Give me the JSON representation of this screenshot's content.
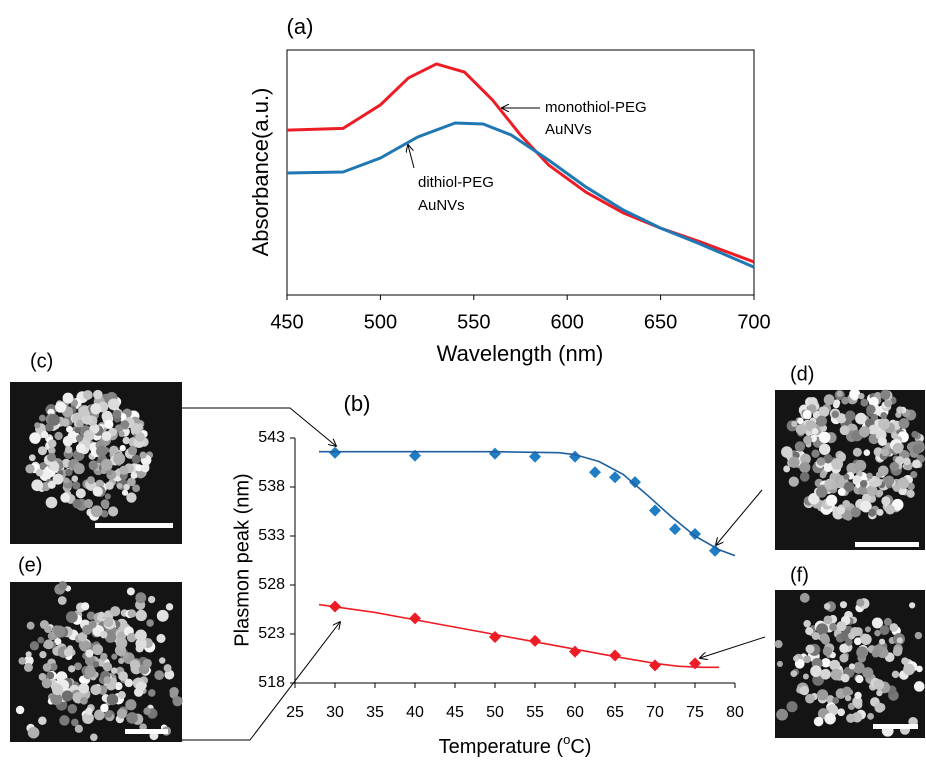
{
  "chart_data": [
    {
      "type": "line",
      "title": "(a)",
      "x_label": "Wavelength (nm)",
      "y_label": "Absorbance(a.u.)",
      "xlim": [
        450,
        700
      ],
      "xticks": [
        450,
        500,
        550,
        600,
        650,
        700
      ],
      "ylim": [
        0,
        1
      ],
      "series": [
        {
          "color": "#ee1c25",
          "x": [
            450,
            480,
            500,
            515,
            530,
            545,
            560,
            575,
            590,
            610,
            630,
            650,
            670,
            700
          ],
          "values": [
            0.673,
            0.68,
            0.776,
            0.886,
            0.943,
            0.91,
            0.796,
            0.653,
            0.531,
            0.42,
            0.335,
            0.273,
            0.22,
            0.135
          ]
        },
        {
          "color": "#1f77b4",
          "x": [
            450,
            480,
            500,
            520,
            540,
            555,
            570,
            590,
            610,
            630,
            650,
            670,
            700
          ],
          "values": [
            0.498,
            0.502,
            0.559,
            0.645,
            0.702,
            0.698,
            0.653,
            0.551,
            0.441,
            0.347,
            0.273,
            0.212,
            0.114
          ]
        }
      ],
      "annotations": [
        [
          "monothiol-PEG",
          "AuNVs"
        ],
        [
          "dithiol-PEG",
          "AuNVs"
        ]
      ]
    },
    {
      "type": "scatter",
      "title": "(b)",
      "x_label": [
        "Temperature (",
        "o",
        "C)"
      ],
      "y_label": "Plasmon peak (nm)",
      "xlim": [
        25,
        80
      ],
      "xticks": [
        25,
        30,
        35,
        40,
        45,
        50,
        55,
        60,
        65,
        70,
        75,
        80
      ],
      "ylim": [
        518,
        543
      ],
      "yticks": [
        518,
        523,
        528,
        533,
        538,
        543
      ],
      "series": [
        {
          "style": "marker",
          "color": "#1f7dc4",
          "x": [
            30,
            40,
            50,
            55,
            60,
            62.5,
            65,
            67.5,
            70,
            72.5,
            75,
            77.5
          ],
          "values": [
            541.5,
            541.2,
            541.4,
            541.1,
            541.1,
            539.5,
            539,
            538.5,
            535.6,
            533.7,
            533.2,
            531.5
          ]
        },
        {
          "style": "marker",
          "color": "#ee1c25",
          "x": [
            30,
            40,
            50,
            55,
            60,
            65,
            70,
            75
          ],
          "values": [
            525.8,
            524.6,
            522.7,
            522.3,
            521.2,
            520.8,
            519.8,
            520
          ]
        },
        {
          "style": "line",
          "color": "#1f5f9f",
          "x": [
            28,
            40,
            50,
            58,
            60,
            63,
            66,
            69,
            72,
            75,
            78,
            80
          ],
          "values": [
            541.6,
            541.6,
            541.6,
            541.5,
            541.3,
            540.6,
            539.3,
            537.2,
            535,
            533,
            531.6,
            531
          ]
        },
        {
          "style": "line",
          "color": "#ee1c25",
          "x": [
            28,
            35,
            45,
            55,
            65,
            70,
            73,
            76,
            78
          ],
          "values": [
            526,
            525.2,
            523.7,
            522.2,
            520.7,
            520,
            519.7,
            519.6,
            519.6
          ]
        }
      ]
    }
  ],
  "panels": [
    "(c)",
    "(d)",
    "(e)",
    "(f)"
  ]
}
